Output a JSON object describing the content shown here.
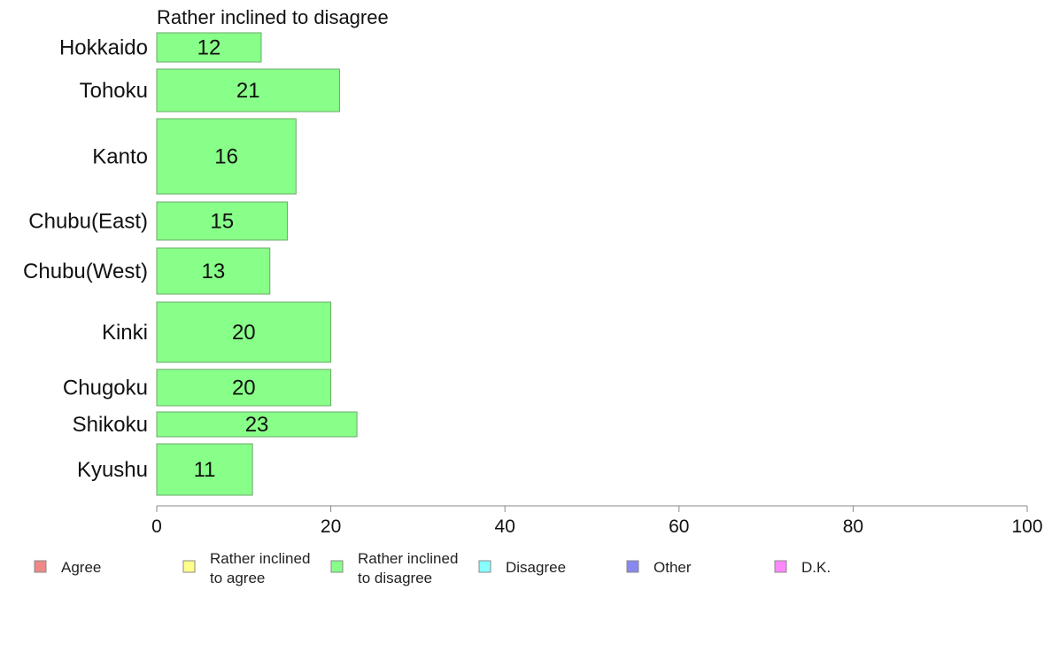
{
  "chart_data": {
    "type": "bar",
    "orientation": "horizontal",
    "title": "Rather inclined to disagree",
    "categories": [
      "Hokkaido",
      "Tohoku",
      "Kanto",
      "Chubu(East)",
      "Chubu(West)",
      "Kinki",
      "Chugoku",
      "Shikoku",
      "Kyushu"
    ],
    "values": [
      12,
      21,
      16,
      15,
      13,
      20,
      20,
      23,
      11
    ],
    "xlim": [
      0,
      100
    ],
    "x_ticks": [
      "0",
      "20",
      "40",
      "60",
      "80",
      "100"
    ],
    "bar_color": "#88ff88",
    "grid": false,
    "legend_position": "bottom"
  },
  "legend": [
    {
      "lines": [
        "Agree"
      ],
      "color": "#f08888"
    },
    {
      "lines": [
        "Rather inclined",
        "to agree"
      ],
      "color": "#ffff88"
    },
    {
      "lines": [
        "Rather inclined",
        "to disagree"
      ],
      "color": "#88ff88"
    },
    {
      "lines": [
        "Disagree"
      ],
      "color": "#88ffff"
    },
    {
      "lines": [
        "Other"
      ],
      "color": "#8888f0"
    },
    {
      "lines": [
        "D.K."
      ],
      "color": "#ff88ff"
    }
  ]
}
